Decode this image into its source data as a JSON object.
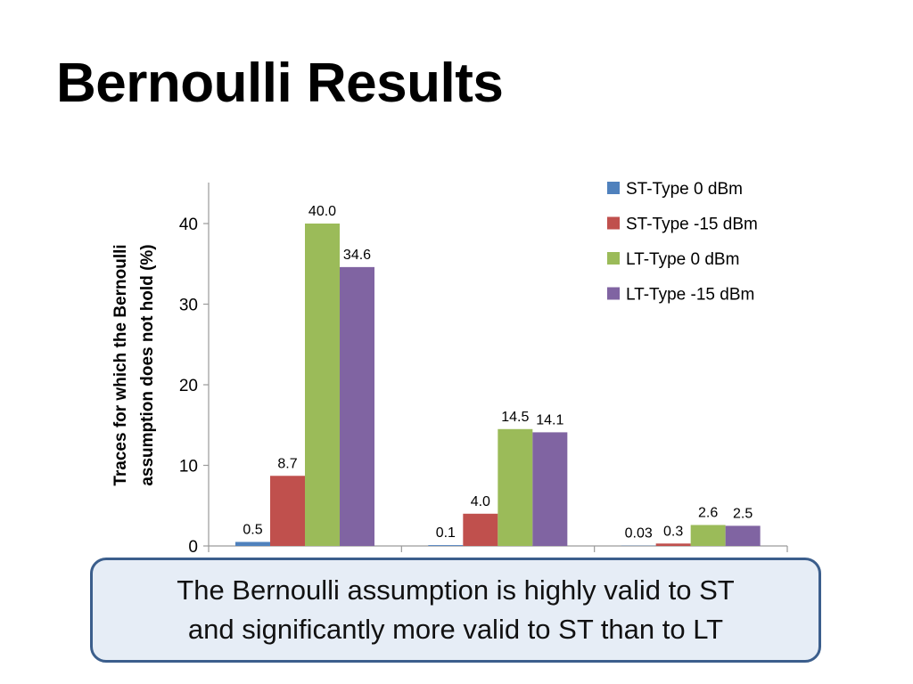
{
  "slide": {
    "title": "Bernoulli Results"
  },
  "callout": {
    "line1": "The Bernoulli assumption is highly valid to ST",
    "line2": "and significantly more valid to ST than to LT"
  },
  "chart_data": {
    "type": "bar",
    "title": "",
    "xlabel": "",
    "ylabel": "Traces for which the Bernoulli assumption does not hold (%)",
    "ylabel_lines": [
      "Traces for which the Bernoulli",
      "assumption does not hold (%)"
    ],
    "ylim": [
      0,
      45
    ],
    "yticks": [
      0,
      10,
      20,
      30,
      40
    ],
    "grid": false,
    "legend_position": "top-right",
    "categories": [
      "",
      "",
      ""
    ],
    "series": [
      {
        "name": "ST-Type 0 dBm",
        "color": "#4f81bd",
        "values": [
          0.5,
          0.1,
          0.03
        ],
        "labels": [
          "0.5",
          "0.1",
          "0.03"
        ]
      },
      {
        "name": "ST-Type -15 dBm",
        "color": "#c0504d",
        "values": [
          8.7,
          4.0,
          0.3
        ],
        "labels": [
          "8.7",
          "4.0",
          "0.3"
        ]
      },
      {
        "name": "LT-Type 0 dBm",
        "color": "#9bbb59",
        "values": [
          40.0,
          14.5,
          2.6
        ],
        "labels": [
          "40.0",
          "14.5",
          "2.6"
        ]
      },
      {
        "name": "LT-Type -15 dBm",
        "color": "#8064a2",
        "values": [
          34.6,
          14.1,
          2.5
        ],
        "labels": [
          "34.6",
          "14.1",
          "2.5"
        ]
      }
    ]
  }
}
